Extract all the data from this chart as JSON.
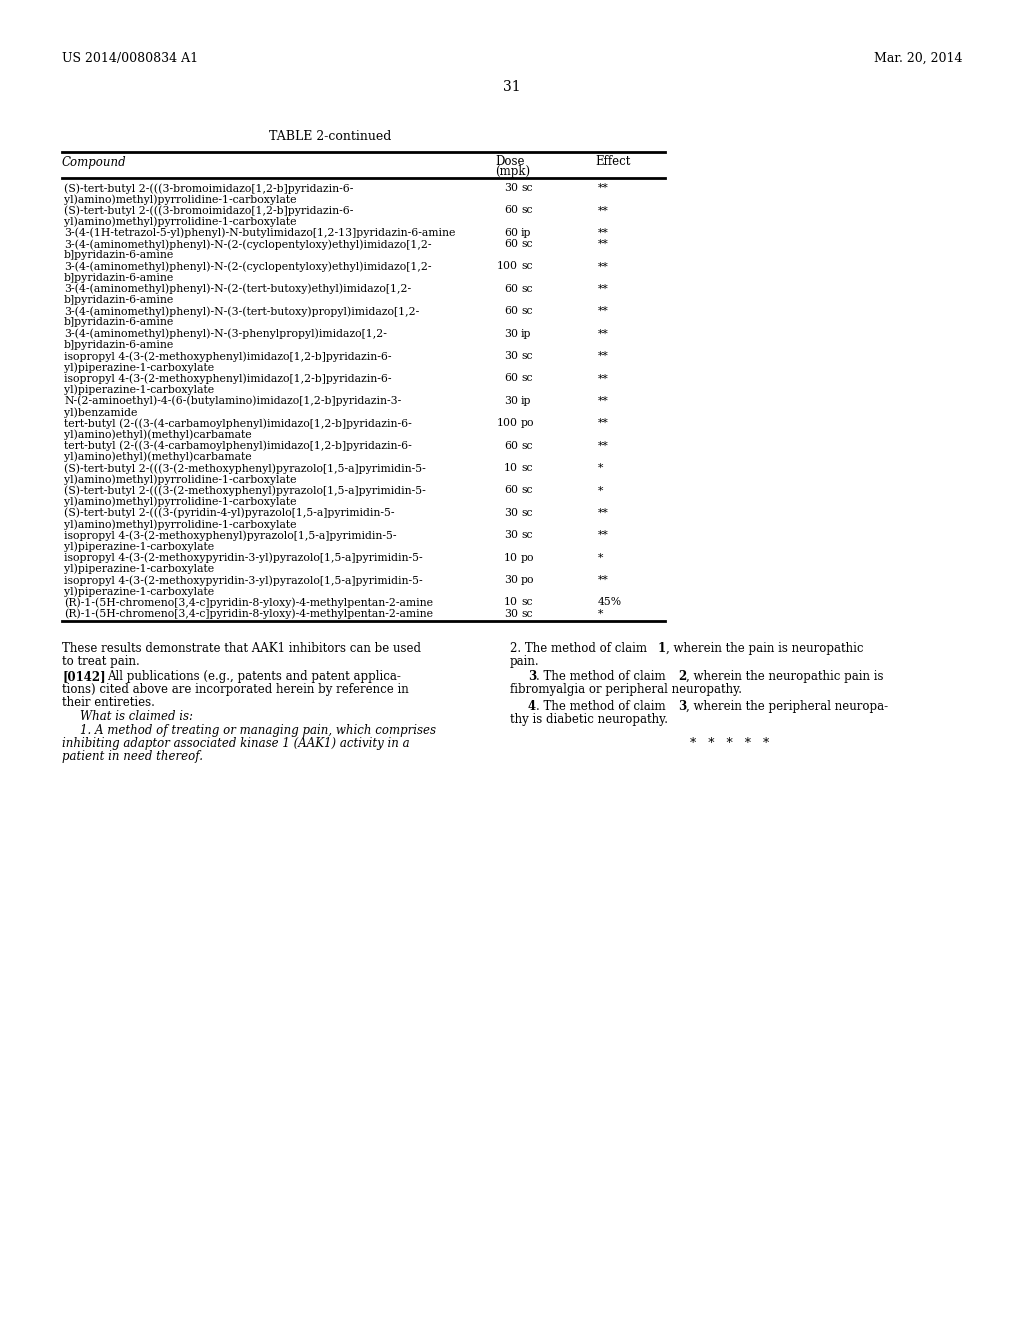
{
  "header_left": "US 2014/0080834 A1",
  "header_right": "Mar. 20, 2014",
  "page_number": "31",
  "table_title": "TABLE 2-continued",
  "table_rows": [
    [
      "(S)-tert-butyl 2-(((3-bromoimidazo[1,2-b]pyridazin-6-",
      "30 sc",
      "**"
    ],
    [
      "yl)amino)methyl)pyrrolidine-1-carboxylate",
      "",
      ""
    ],
    [
      "(S)-tert-butyl 2-(((3-bromoimidazo[1,2-b]pyridazin-6-",
      "60 sc",
      "**"
    ],
    [
      "yl)amino)methyl)pyrrolidine-1-carboxylate",
      "",
      ""
    ],
    [
      "3-(4-(1H-tetrazol-5-yl)phenyl)-N-butylimidazo[1,2-13]pyridazin-6-amine",
      "60 ip",
      "**"
    ],
    [
      "3-(4-(aminomethyl)phenyl)-N-(2-(cyclopentyloxy)ethyl)imidazo[1,2-",
      "60 sc",
      "**"
    ],
    [
      "b]pyridazin-6-amine",
      "",
      ""
    ],
    [
      "3-(4-(aminomethyl)phenyl)-N-(2-(cyclopentyloxy)ethyl)imidazo[1,2-",
      "100 sc",
      "**"
    ],
    [
      "b]pyridazin-6-amine",
      "",
      ""
    ],
    [
      "3-(4-(aminomethyl)phenyl)-N-(2-(tert-butoxy)ethyl)imidazo[1,2-",
      "60 sc",
      "**"
    ],
    [
      "b]pyridazin-6-amine",
      "",
      ""
    ],
    [
      "3-(4-(aminomethyl)phenyl)-N-(3-(tert-butoxy)propyl)imidazo[1,2-",
      "60 sc",
      "**"
    ],
    [
      "b]pyridazin-6-amine",
      "",
      ""
    ],
    [
      "3-(4-(aminomethyl)phenyl)-N-(3-phenylpropyl)imidazo[1,2-",
      "30 ip",
      "**"
    ],
    [
      "b]pyridazin-6-amine",
      "",
      ""
    ],
    [
      "isopropyl 4-(3-(2-methoxyphenyl)imidazo[1,2-b]pyridazin-6-",
      "30 sc",
      "**"
    ],
    [
      "yl)piperazine-1-carboxylate",
      "",
      ""
    ],
    [
      "isopropyl 4-(3-(2-methoxyphenyl)imidazo[1,2-b]pyridazin-6-",
      "60 sc",
      "**"
    ],
    [
      "yl)piperazine-1-carboxylate",
      "",
      ""
    ],
    [
      "N-(2-aminoethyl)-4-(6-(butylamino)imidazo[1,2-b]pyridazin-3-",
      "30 ip",
      "**"
    ],
    [
      "yl)benzamide",
      "",
      ""
    ],
    [
      "tert-butyl (2-((3-(4-carbamoylphenyl)imidazo[1,2-b]pyridazin-6-",
      "100 po",
      "**"
    ],
    [
      "yl)amino)ethyl)(methyl)carbamate",
      "",
      ""
    ],
    [
      "tert-butyl (2-((3-(4-carbamoylphenyl)imidazo[1,2-b]pyridazin-6-",
      "60 sc",
      "**"
    ],
    [
      "yl)amino)ethyl)(methyl)carbamate",
      "",
      ""
    ],
    [
      "(S)-tert-butyl 2-(((3-(2-methoxyphenyl)pyrazolo[1,5-a]pyrimidin-5-",
      "10 sc",
      "*"
    ],
    [
      "yl)amino)methyl)pyrrolidine-1-carboxylate",
      "",
      ""
    ],
    [
      "(S)-tert-butyl 2-(((3-(2-methoxyphenyl)pyrazolo[1,5-a]pyrimidin-5-",
      "60 sc",
      "*"
    ],
    [
      "yl)amino)methyl)pyrrolidine-1-carboxylate",
      "",
      ""
    ],
    [
      "(S)-tert-butyl 2-(((3-(pyridin-4-yl)pyrazolo[1,5-a]pyrimidin-5-",
      "30 sc",
      "**"
    ],
    [
      "yl)amino)methyl)pyrrolidine-1-carboxylate",
      "",
      ""
    ],
    [
      "isopropyl 4-(3-(2-methoxyphenyl)pyrazolo[1,5-a]pyrimidin-5-",
      "30 sc",
      "**"
    ],
    [
      "yl)piperazine-1-carboxylate",
      "",
      ""
    ],
    [
      "isopropyl 4-(3-(2-methoxypyridin-3-yl)pyrazolo[1,5-a]pyrimidin-5-",
      "10 po",
      "*"
    ],
    [
      "yl)piperazine-1-carboxylate",
      "",
      ""
    ],
    [
      "isopropyl 4-(3-(2-methoxypyridin-3-yl)pyrazolo[1,5-a]pyrimidin-5-",
      "30 po",
      "**"
    ],
    [
      "yl)piperazine-1-carboxylate",
      "",
      ""
    ],
    [
      "(R)-1-(5H-chromeno[3,4-c]pyridin-8-yloxy)-4-methylpentan-2-amine",
      "10 sc",
      "45%"
    ],
    [
      "(R)-1-(5H-chromeno[3,4-c]pyridin-8-yloxy)-4-methylpentan-2-amine",
      "30 sc",
      "*"
    ]
  ],
  "bg_color": "#ffffff",
  "text_color": "#000000"
}
